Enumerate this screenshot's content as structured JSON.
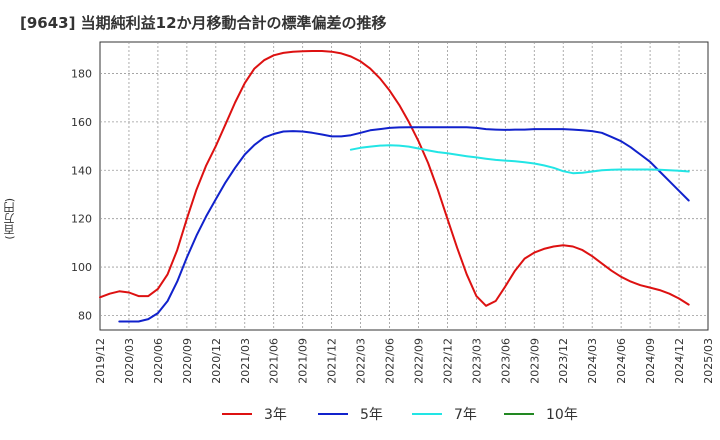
{
  "chart_data": {
    "type": "line",
    "title": "[9643]  当期純利益12か月移動合計の標準偏差の推移",
    "ylabel": "(百万円)",
    "xlabel": "",
    "ylim": [
      74,
      193
    ],
    "yticks": [
      80,
      100,
      120,
      140,
      160,
      180
    ],
    "x_ticks": [
      "2019/12",
      "2020/03",
      "2020/06",
      "2020/09",
      "2020/12",
      "2021/03",
      "2021/06",
      "2021/09",
      "2021/12",
      "2022/03",
      "2022/06",
      "2022/09",
      "2022/12",
      "2023/03",
      "2023/06",
      "2023/09",
      "2023/12",
      "2024/03",
      "2024/06",
      "2024/09",
      "2024/12",
      "2025/03"
    ],
    "grid": true,
    "legend_position": "bottom",
    "series": [
      {
        "name": "3年",
        "color": "#dd1111",
        "values": [
          {
            "x": "2019/12",
            "y": 87.5
          },
          {
            "x": "2020/01",
            "y": 89
          },
          {
            "x": "2020/02",
            "y": 90
          },
          {
            "x": "2020/03",
            "y": 89.5
          },
          {
            "x": "2020/04",
            "y": 88
          },
          {
            "x": "2020/05",
            "y": 88
          },
          {
            "x": "2020/06",
            "y": 91
          },
          {
            "x": "2020/07",
            "y": 97
          },
          {
            "x": "2020/08",
            "y": 107
          },
          {
            "x": "2020/09",
            "y": 120
          },
          {
            "x": "2020/10",
            "y": 132
          },
          {
            "x": "2020/11",
            "y": 142
          },
          {
            "x": "2020/12",
            "y": 150
          },
          {
            "x": "2021/01",
            "y": 159
          },
          {
            "x": "2021/02",
            "y": 168
          },
          {
            "x": "2021/03",
            "y": 176
          },
          {
            "x": "2021/04",
            "y": 182
          },
          {
            "x": "2021/05",
            "y": 185.5
          },
          {
            "x": "2021/06",
            "y": 187.5
          },
          {
            "x": "2021/07",
            "y": 188.5
          },
          {
            "x": "2021/08",
            "y": 189
          },
          {
            "x": "2021/09",
            "y": 189.2
          },
          {
            "x": "2021/10",
            "y": 189.3
          },
          {
            "x": "2021/11",
            "y": 189.3
          },
          {
            "x": "2021/12",
            "y": 189
          },
          {
            "x": "2022/01",
            "y": 188.3
          },
          {
            "x": "2022/02",
            "y": 187
          },
          {
            "x": "2022/03",
            "y": 185
          },
          {
            "x": "2022/04",
            "y": 182
          },
          {
            "x": "2022/05",
            "y": 178
          },
          {
            "x": "2022/06",
            "y": 173
          },
          {
            "x": "2022/07",
            "y": 167
          },
          {
            "x": "2022/08",
            "y": 160
          },
          {
            "x": "2022/09",
            "y": 152
          },
          {
            "x": "2022/10",
            "y": 143
          },
          {
            "x": "2022/11",
            "y": 132
          },
          {
            "x": "2022/12",
            "y": 120
          },
          {
            "x": "2023/01",
            "y": 108
          },
          {
            "x": "2023/02",
            "y": 97
          },
          {
            "x": "2023/03",
            "y": 88
          },
          {
            "x": "2023/04",
            "y": 84
          },
          {
            "x": "2023/05",
            "y": 86
          },
          {
            "x": "2023/06",
            "y": 92
          },
          {
            "x": "2023/07",
            "y": 98.5
          },
          {
            "x": "2023/08",
            "y": 103.5
          },
          {
            "x": "2023/09",
            "y": 106
          },
          {
            "x": "2023/10",
            "y": 107.5
          },
          {
            "x": "2023/11",
            "y": 108.5
          },
          {
            "x": "2023/12",
            "y": 109
          },
          {
            "x": "2024/01",
            "y": 108.5
          },
          {
            "x": "2024/02",
            "y": 107
          },
          {
            "x": "2024/03",
            "y": 104.5
          },
          {
            "x": "2024/04",
            "y": 101.5
          },
          {
            "x": "2024/05",
            "y": 98.5
          },
          {
            "x": "2024/06",
            "y": 96
          },
          {
            "x": "2024/07",
            "y": 94
          },
          {
            "x": "2024/08",
            "y": 92.5
          },
          {
            "x": "2024/09",
            "y": 91.5
          },
          {
            "x": "2024/10",
            "y": 90.5
          },
          {
            "x": "2024/11",
            "y": 89
          },
          {
            "x": "2024/12",
            "y": 87
          },
          {
            "x": "2025/01",
            "y": 84.5
          }
        ]
      },
      {
        "name": "5年",
        "color": "#1122cc",
        "values": [
          {
            "x": "2020/02",
            "y": 77.5
          },
          {
            "x": "2020/03",
            "y": 77.5
          },
          {
            "x": "2020/04",
            "y": 77.5
          },
          {
            "x": "2020/05",
            "y": 78.5
          },
          {
            "x": "2020/06",
            "y": 81
          },
          {
            "x": "2020/07",
            "y": 86
          },
          {
            "x": "2020/08",
            "y": 94
          },
          {
            "x": "2020/09",
            "y": 104
          },
          {
            "x": "2020/10",
            "y": 113
          },
          {
            "x": "2020/11",
            "y": 121
          },
          {
            "x": "2020/12",
            "y": 128
          },
          {
            "x": "2021/01",
            "y": 135
          },
          {
            "x": "2021/02",
            "y": 141
          },
          {
            "x": "2021/03",
            "y": 146.5
          },
          {
            "x": "2021/04",
            "y": 150.5
          },
          {
            "x": "2021/05",
            "y": 153.5
          },
          {
            "x": "2021/06",
            "y": 155
          },
          {
            "x": "2021/07",
            "y": 156
          },
          {
            "x": "2021/08",
            "y": 156.2
          },
          {
            "x": "2021/09",
            "y": 156
          },
          {
            "x": "2021/10",
            "y": 155.5
          },
          {
            "x": "2021/11",
            "y": 154.8
          },
          {
            "x": "2021/12",
            "y": 154
          },
          {
            "x": "2022/01",
            "y": 154
          },
          {
            "x": "2022/02",
            "y": 154.5
          },
          {
            "x": "2022/03",
            "y": 155.5
          },
          {
            "x": "2022/04",
            "y": 156.5
          },
          {
            "x": "2022/05",
            "y": 157
          },
          {
            "x": "2022/06",
            "y": 157.5
          },
          {
            "x": "2022/07",
            "y": 157.7
          },
          {
            "x": "2022/08",
            "y": 157.8
          },
          {
            "x": "2022/09",
            "y": 157.8
          },
          {
            "x": "2022/10",
            "y": 157.8
          },
          {
            "x": "2022/11",
            "y": 157.8
          },
          {
            "x": "2022/12",
            "y": 157.8
          },
          {
            "x": "2023/01",
            "y": 157.8
          },
          {
            "x": "2023/02",
            "y": 157.8
          },
          {
            "x": "2023/03",
            "y": 157.5
          },
          {
            "x": "2023/04",
            "y": 157
          },
          {
            "x": "2023/05",
            "y": 156.8
          },
          {
            "x": "2023/06",
            "y": 156.7
          },
          {
            "x": "2023/07",
            "y": 156.8
          },
          {
            "x": "2023/08",
            "y": 156.8
          },
          {
            "x": "2023/09",
            "y": 157
          },
          {
            "x": "2023/10",
            "y": 157
          },
          {
            "x": "2023/11",
            "y": 157
          },
          {
            "x": "2023/12",
            "y": 157
          },
          {
            "x": "2024/01",
            "y": 156.8
          },
          {
            "x": "2024/02",
            "y": 156.5
          },
          {
            "x": "2024/03",
            "y": 156.2
          },
          {
            "x": "2024/04",
            "y": 155.5
          },
          {
            "x": "2024/05",
            "y": 153.8
          },
          {
            "x": "2024/06",
            "y": 152
          },
          {
            "x": "2024/07",
            "y": 149.5
          },
          {
            "x": "2024/08",
            "y": 146.5
          },
          {
            "x": "2024/09",
            "y": 143.5
          },
          {
            "x": "2024/10",
            "y": 139.5
          },
          {
            "x": "2024/11",
            "y": 135.5
          },
          {
            "x": "2024/12",
            "y": 131.5
          },
          {
            "x": "2025/01",
            "y": 127.5
          }
        ]
      },
      {
        "name": "7年",
        "color": "#22e5e5",
        "values": [
          {
            "x": "2022/02",
            "y": 148.5
          },
          {
            "x": "2022/03",
            "y": 149.3
          },
          {
            "x": "2022/04",
            "y": 149.8
          },
          {
            "x": "2022/05",
            "y": 150.2
          },
          {
            "x": "2022/06",
            "y": 150.3
          },
          {
            "x": "2022/07",
            "y": 150.2
          },
          {
            "x": "2022/08",
            "y": 149.8
          },
          {
            "x": "2022/09",
            "y": 149
          },
          {
            "x": "2022/10",
            "y": 148.2
          },
          {
            "x": "2022/11",
            "y": 147.5
          },
          {
            "x": "2022/12",
            "y": 147
          },
          {
            "x": "2023/01",
            "y": 146.4
          },
          {
            "x": "2023/02",
            "y": 145.8
          },
          {
            "x": "2023/03",
            "y": 145.3
          },
          {
            "x": "2023/04",
            "y": 144.8
          },
          {
            "x": "2023/05",
            "y": 144.3
          },
          {
            "x": "2023/06",
            "y": 144
          },
          {
            "x": "2023/07",
            "y": 143.7
          },
          {
            "x": "2023/08",
            "y": 143.3
          },
          {
            "x": "2023/09",
            "y": 142.8
          },
          {
            "x": "2023/10",
            "y": 142
          },
          {
            "x": "2023/11",
            "y": 141
          },
          {
            "x": "2023/12",
            "y": 139.6
          },
          {
            "x": "2024/01",
            "y": 138.8
          },
          {
            "x": "2024/02",
            "y": 139
          },
          {
            "x": "2024/03",
            "y": 139.5
          },
          {
            "x": "2024/04",
            "y": 140
          },
          {
            "x": "2024/05",
            "y": 140.2
          },
          {
            "x": "2024/06",
            "y": 140.3
          },
          {
            "x": "2024/07",
            "y": 140.3
          },
          {
            "x": "2024/08",
            "y": 140.3
          },
          {
            "x": "2024/09",
            "y": 140.3
          },
          {
            "x": "2024/10",
            "y": 140.2
          },
          {
            "x": "2024/11",
            "y": 140
          },
          {
            "x": "2024/12",
            "y": 139.8
          },
          {
            "x": "2025/01",
            "y": 139.5
          }
        ]
      },
      {
        "name": "10年",
        "color": "#228822",
        "values": []
      }
    ]
  }
}
